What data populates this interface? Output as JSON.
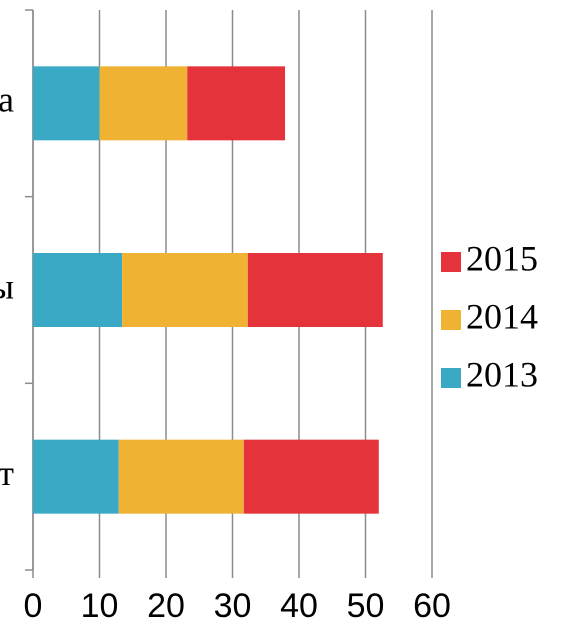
{
  "chart_data": {
    "type": "bar",
    "orientation": "horizontal",
    "stacked": true,
    "categories": [
      "а",
      "ы",
      "т"
    ],
    "series": [
      {
        "name": "2013",
        "color": "#3aa9c6",
        "values": [
          10,
          13.4,
          12.9
        ]
      },
      {
        "name": "2014",
        "color": "#f0b232",
        "values": [
          13.2,
          18.9,
          18.8
        ]
      },
      {
        "name": "2015",
        "color": "#e5333b",
        "values": [
          14.7,
          20.3,
          20.3
        ]
      }
    ],
    "xlim": [
      0,
      60
    ],
    "xticks": [
      0,
      10,
      20,
      30,
      40,
      50,
      60
    ],
    "grid": true,
    "legend": "right"
  }
}
